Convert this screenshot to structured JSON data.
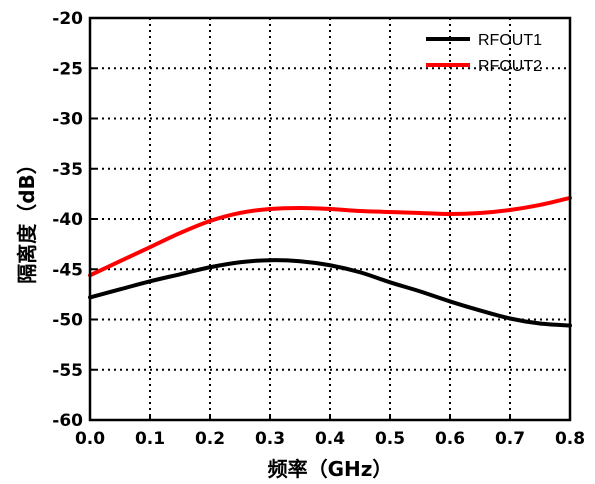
{
  "chart_data": {
    "type": "line",
    "xlabel": "频率（GHz）",
    "ylabel": "隔离度（dB）",
    "xlim": [
      0.0,
      0.8
    ],
    "ylim": [
      -60,
      -20
    ],
    "xticks": [
      "0.0",
      "0.1",
      "0.2",
      "0.3",
      "0.4",
      "0.5",
      "0.6",
      "0.7",
      "0.8"
    ],
    "yticks": [
      "-60",
      "-55",
      "-50",
      "-45",
      "-40",
      "-35",
      "-30",
      "-25",
      "-20"
    ],
    "grid": true,
    "legend": "top-right",
    "x": [
      0.0,
      0.05,
      0.1,
      0.15,
      0.2,
      0.25,
      0.3,
      0.35,
      0.4,
      0.45,
      0.5,
      0.55,
      0.6,
      0.65,
      0.7,
      0.75,
      0.8
    ],
    "series": [
      {
        "name": "RFOUT1",
        "color": "#000000",
        "values": [
          -47.8,
          -47.0,
          -46.2,
          -45.5,
          -44.8,
          -44.3,
          -44.1,
          -44.2,
          -44.6,
          -45.3,
          -46.3,
          -47.2,
          -48.2,
          -49.1,
          -49.9,
          -50.4,
          -50.6
        ]
      },
      {
        "name": "RFOUT2",
        "color": "#ff0000",
        "values": [
          -45.6,
          -44.2,
          -42.8,
          -41.4,
          -40.2,
          -39.4,
          -39.0,
          -38.9,
          -39.0,
          -39.2,
          -39.3,
          -39.4,
          -39.5,
          -39.4,
          -39.1,
          -38.6,
          -37.9
        ]
      }
    ]
  }
}
